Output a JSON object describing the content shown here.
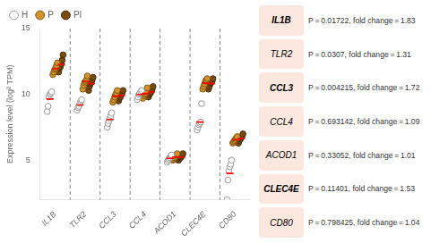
{
  "chart_data": {
    "type": "scatter",
    "categories": [
      "IL1B",
      "TLR2",
      "CCL3",
      "CCL4",
      "ACOD1",
      "CLEC4E",
      "CD80"
    ],
    "series": [
      {
        "name": "H",
        "color": "#ffffff",
        "values": [
          [
            8.7,
            9.1,
            9.8,
            10.0,
            10.1,
            10.2
          ],
          [
            8.8,
            9.0,
            9.1,
            9.3,
            9.5,
            9.6
          ],
          [
            7.5,
            7.8,
            8.0,
            8.2,
            8.4,
            8.6
          ],
          [
            9.6,
            9.8,
            10.0,
            10.1,
            10.2,
            10.3
          ],
          [
            4.85,
            5.0,
            5.1,
            5.2,
            5.3,
            5.4
          ],
          [
            7.3,
            7.5,
            7.7,
            7.8,
            7.9,
            9.3
          ],
          [
            2.0,
            3.5,
            4.2,
            4.5,
            4.7,
            5.0
          ]
        ],
        "means": [
          9.65,
          9.2,
          8.1,
          10.0,
          5.15,
          7.9,
          4.0
        ]
      },
      {
        "name": "P",
        "color": "#d4922a",
        "values": [
          [
            11.5,
            11.7,
            11.9,
            12.0,
            12.2,
            12.4
          ],
          [
            10.4,
            10.7,
            10.9,
            11.0,
            11.1,
            11.4
          ],
          [
            9.4,
            9.6,
            9.8,
            10.0,
            10.1,
            10.3
          ],
          [
            9.7,
            9.9,
            10.0,
            10.1,
            10.2,
            10.5
          ],
          [
            5.0,
            5.1,
            5.2,
            5.3,
            5.4,
            5.5
          ],
          [
            10.4,
            10.6,
            10.8,
            11.0,
            11.1,
            11.2
          ],
          [
            6.3,
            6.4,
            6.5,
            6.6,
            6.7,
            6.8
          ]
        ],
        "means": [
          11.95,
          11.0,
          9.87,
          10.07,
          5.25,
          10.85,
          6.55
        ]
      },
      {
        "name": "PI",
        "color": "#7b4a10",
        "values": [
          [
            11.7,
            12.0,
            12.1,
            12.3,
            12.6,
            13.0
          ],
          [
            10.3,
            10.6,
            10.8,
            10.9,
            11.1,
            11.3
          ],
          [
            9.5,
            9.7,
            9.8,
            10.0,
            10.1,
            10.3
          ],
          [
            9.8,
            10.0,
            10.1,
            10.2,
            10.4,
            10.6
          ],
          [
            5.0,
            5.1,
            5.2,
            5.25,
            5.35,
            5.5
          ],
          [
            10.4,
            10.6,
            10.8,
            10.9,
            11.0,
            11.2
          ],
          [
            6.3,
            6.5,
            6.6,
            6.7,
            6.8,
            7.0
          ]
        ],
        "means": [
          12.28,
          10.83,
          9.9,
          10.18,
          5.23,
          10.82,
          6.65
        ]
      }
    ],
    "ylabel": "Expression level (log² TPM)",
    "ylim": [
      2,
      15
    ],
    "yticks": [
      5,
      10,
      15
    ],
    "grid": false,
    "legend": "top",
    "annotations": [
      {
        "label": "IL1B",
        "bold": true,
        "color": "#fde8e0",
        "text": "P = 0.01722, fold change = 1.83"
      },
      {
        "label": "TLR2",
        "bold": false,
        "color": "#fde8e0",
        "text": "P = 0.0307, fold change = 1.31"
      },
      {
        "label": "CCL3",
        "bold": true,
        "color": "#fde8e0",
        "text": "P = 0.004215, fold change = 1.72"
      },
      {
        "label": "CCL4",
        "bold": false,
        "color": "#fde8e0",
        "text": "P = 0.693142, fold change = 1.09"
      },
      {
        "label": "ACOD1",
        "bold": false,
        "color": "#fde8e0",
        "text": "P = 0.33052, fold change = 1.01"
      },
      {
        "label": "CLEC4E",
        "bold": true,
        "color": "#fde8e0",
        "text": "P = 0.11401, fold change = 1.53"
      },
      {
        "label": "CD80",
        "bold": false,
        "color": "#fde8e0",
        "text": "P = 0.798425, fold change = 1.04"
      }
    ]
  }
}
